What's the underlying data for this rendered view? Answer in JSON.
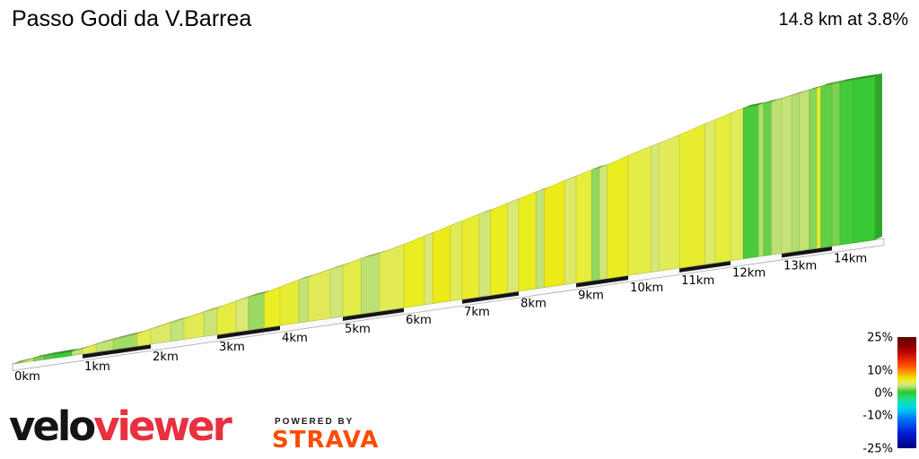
{
  "header": {
    "title": "Passo Godi da V.Barrea",
    "summary": "14.8 km at 3.8%"
  },
  "chart_data": {
    "type": "area",
    "title": "Passo Godi da V.Barrea",
    "summary": "14.8 km at 3.8%",
    "total_distance_km": 14.8,
    "avg_gradient_pct": 3.8,
    "x_tick_labels": [
      "0km",
      "1km",
      "2km",
      "3km",
      "4km",
      "5km",
      "6km",
      "7km",
      "8km",
      "9km",
      "10km",
      "11km",
      "12km",
      "13km",
      "14km"
    ],
    "x_ticks_km": [
      0,
      1,
      2,
      3,
      4,
      5,
      6,
      7,
      8,
      9,
      10,
      11,
      12,
      13,
      14
    ],
    "legend": {
      "position": "right",
      "tick_labels": [
        "25%",
        "10%",
        "0%",
        "-10%",
        "-25%"
      ],
      "tick_values": [
        25,
        10,
        0,
        -10,
        -25
      ],
      "min_pct": -25,
      "max_pct": 25
    },
    "colormap_stops": [
      {
        "v": -25,
        "c": "#000080"
      },
      {
        "v": -18,
        "c": "#0020D8"
      },
      {
        "v": -12,
        "c": "#0070F8"
      },
      {
        "v": -9,
        "c": "#00B4F0"
      },
      {
        "v": -6,
        "c": "#00DCDC"
      },
      {
        "v": -3,
        "c": "#20DC9A"
      },
      {
        "v": -1,
        "c": "#2ED24E"
      },
      {
        "v": 0,
        "c": "#2EC82E"
      },
      {
        "v": 1,
        "c": "#52CC3E"
      },
      {
        "v": 2,
        "c": "#96D95E"
      },
      {
        "v": 3,
        "c": "#C2E276"
      },
      {
        "v": 4,
        "c": "#D9E87A"
      },
      {
        "v": 4.7,
        "c": "#E2EB55"
      },
      {
        "v": 5.5,
        "c": "#EAEE22"
      },
      {
        "v": 6.5,
        "c": "#EEE40A"
      },
      {
        "v": 8,
        "c": "#F2BC00"
      },
      {
        "v": 10,
        "c": "#FF8800"
      },
      {
        "v": 12,
        "c": "#FF5200"
      },
      {
        "v": 15,
        "c": "#E62600"
      },
      {
        "v": 18,
        "c": "#BE0600"
      },
      {
        "v": 21,
        "c": "#8E0000"
      },
      {
        "v": 25,
        "c": "#600000"
      }
    ],
    "segments": [
      {
        "w": 0.15,
        "g": 2.2
      },
      {
        "w": 0.15,
        "g": 3.6
      },
      {
        "w": 0.15,
        "g": 1.6
      },
      {
        "w": 0.15,
        "g": 0.9
      },
      {
        "w": 0.25,
        "g": 0.3
      },
      {
        "w": 0.15,
        "g": 3.0
      },
      {
        "w": 0.2,
        "g": 4.6
      },
      {
        "w": 0.25,
        "g": 3.0
      },
      {
        "w": 0.35,
        "g": 2.3
      },
      {
        "w": 0.2,
        "g": 4.8
      },
      {
        "w": 0.3,
        "g": 4.3
      },
      {
        "w": 0.2,
        "g": 3.1
      },
      {
        "w": 0.3,
        "g": 4.7
      },
      {
        "w": 0.2,
        "g": 3.3
      },
      {
        "w": 0.3,
        "g": 5.0
      },
      {
        "w": 0.2,
        "g": 4.1
      },
      {
        "w": 0.25,
        "g": 2.1
      },
      {
        "w": 0.25,
        "g": 5.5
      },
      {
        "w": 0.3,
        "g": 5.2
      },
      {
        "w": 0.15,
        "g": 3.1
      },
      {
        "w": 0.35,
        "g": 4.6
      },
      {
        "w": 0.2,
        "g": 3.6
      },
      {
        "w": 0.3,
        "g": 4.9
      },
      {
        "w": 0.3,
        "g": 2.9
      },
      {
        "w": 0.4,
        "g": 4.7
      },
      {
        "w": 0.35,
        "g": 5.6
      },
      {
        "w": 0.15,
        "g": 4.1
      },
      {
        "w": 0.3,
        "g": 5.9
      },
      {
        "w": 0.2,
        "g": 4.6
      },
      {
        "w": 0.3,
        "g": 5.3
      },
      {
        "w": 0.2,
        "g": 3.6
      },
      {
        "w": 0.3,
        "g": 5.6
      },
      {
        "w": 0.2,
        "g": 4.1
      },
      {
        "w": 0.3,
        "g": 5.6
      },
      {
        "w": 0.15,
        "g": 3.1
      },
      {
        "w": 0.35,
        "g": 5.9
      },
      {
        "w": 0.2,
        "g": 4.3
      },
      {
        "w": 0.3,
        "g": 5.1
      },
      {
        "w": 0.15,
        "g": 1.9
      },
      {
        "w": 0.15,
        "g": 3.6
      },
      {
        "w": 0.4,
        "g": 5.6
      },
      {
        "w": 0.45,
        "g": 4.9
      },
      {
        "w": 0.15,
        "g": 3.9
      },
      {
        "w": 0.4,
        "g": 4.6
      },
      {
        "w": 0.5,
        "g": 5.3
      },
      {
        "w": 0.2,
        "g": 4.3
      },
      {
        "w": 0.3,
        "g": 5.1
      },
      {
        "w": 0.25,
        "g": 4.6
      },
      {
        "w": 0.3,
        "g": 0.8
      },
      {
        "w": 0.1,
        "g": 2.6
      },
      {
        "w": 0.15,
        "g": 1.3
      },
      {
        "w": 0.2,
        "g": 2.9
      },
      {
        "w": 0.2,
        "g": 3.2
      },
      {
        "w": 0.15,
        "g": 2.6
      },
      {
        "w": 0.2,
        "g": 3.0
      },
      {
        "w": 0.15,
        "g": 1.8
      },
      {
        "w": 0.08,
        "g": 5.2
      },
      {
        "w": 0.22,
        "g": 1.2
      },
      {
        "w": 0.15,
        "g": 1.6
      },
      {
        "w": 0.25,
        "g": 0.6
      },
      {
        "w": 0.4,
        "g": 0.3
      }
    ]
  },
  "footer": {
    "brand_black": "velo",
    "brand_red": "viewer",
    "brand_red_color": "#E8303E",
    "powered_by": "POWERED BY",
    "strava": "STRAVA",
    "strava_color": "#FC4C02"
  }
}
